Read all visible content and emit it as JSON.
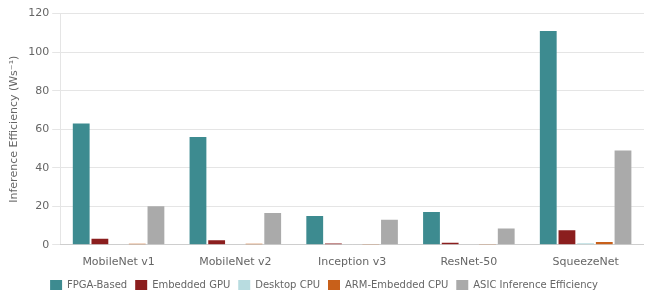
{
  "chart_data": {
    "type": "bar",
    "categories": [
      "MobileNet v1",
      "MobileNet v2",
      "Inception v3",
      "ResNet-50",
      "SqueezeNet"
    ],
    "series": [
      {
        "name": "FPGA-Based",
        "color": "#3d8b90",
        "values": [
          63,
          56,
          15,
          17,
          111
        ]
      },
      {
        "name": "Embedded GPU",
        "color": "#8b1e1e",
        "values": [
          3.2,
          2.3,
          0.7,
          1.0,
          7.5
        ]
      },
      {
        "name": "Desktop CPU",
        "color": "#b8dce0",
        "values": [
          0.3,
          0.3,
          0.3,
          0.3,
          0.8
        ]
      },
      {
        "name": "ARM-Embedded CPU",
        "color": "#c8601a",
        "values": [
          0.5,
          0.5,
          0.4,
          0.4,
          1.5
        ]
      },
      {
        "name": "ASIC Inference Efficiency",
        "color": "#aaaaaa",
        "values": [
          20,
          16.5,
          13,
          8.5,
          49
        ]
      }
    ],
    "ylabel": "Inference Efficiency (Ws⁻¹)",
    "ylim": [
      0,
      120
    ],
    "yticks": [
      0,
      20,
      40,
      60,
      80,
      100,
      120
    ],
    "grid": true,
    "legend": "bottom"
  }
}
